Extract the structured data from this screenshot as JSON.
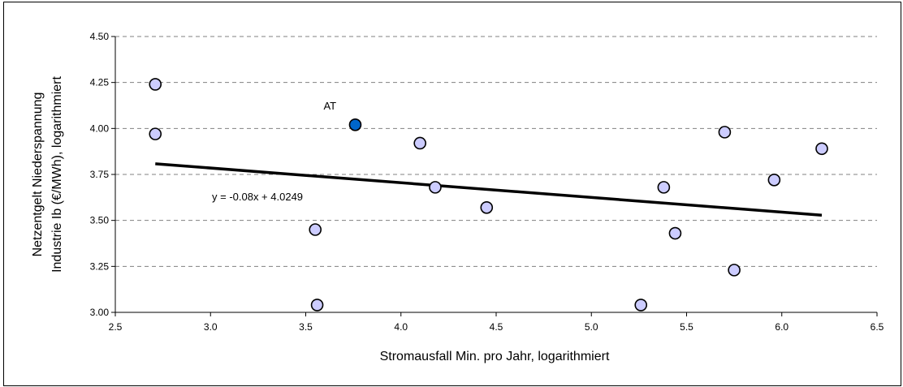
{
  "chart_data": {
    "type": "scatter",
    "xlabel": "Stromausfall Min. pro Jahr, logarithmiert",
    "ylabel_lines": [
      "Netzentgelt Niederspannung",
      "Industrie Ib (€/MWh), logarithmiert"
    ],
    "xlim": [
      2.5,
      6.5
    ],
    "ylim": [
      3.0,
      4.5
    ],
    "x_ticks": [
      "2.5",
      "3.0",
      "3.5",
      "4.0",
      "4.5",
      "5.0",
      "5.5",
      "6.0",
      "6.5"
    ],
    "y_ticks": [
      "3.00",
      "3.25",
      "3.50",
      "3.75",
      "4.00",
      "4.25",
      "4.50"
    ],
    "grid": {
      "horizontal": true,
      "style": "dashed"
    },
    "colors": {
      "point_fill": "#ccccff",
      "highlight_fill": "#0066cc",
      "point_stroke": "#000000",
      "trendline": "#000000",
      "grid": "#808080"
    },
    "points": [
      {
        "x": 2.71,
        "y": 4.24
      },
      {
        "x": 2.71,
        "y": 3.97
      },
      {
        "x": 3.55,
        "y": 3.45
      },
      {
        "x": 3.56,
        "y": 3.04
      },
      {
        "x": 3.76,
        "y": 4.02,
        "highlight": true,
        "label": "AT"
      },
      {
        "x": 4.1,
        "y": 3.92
      },
      {
        "x": 4.18,
        "y": 3.68
      },
      {
        "x": 4.45,
        "y": 3.57
      },
      {
        "x": 5.26,
        "y": 3.04
      },
      {
        "x": 5.38,
        "y": 3.68
      },
      {
        "x": 5.44,
        "y": 3.43
      },
      {
        "x": 5.7,
        "y": 3.98
      },
      {
        "x": 5.75,
        "y": 3.23
      },
      {
        "x": 5.96,
        "y": 3.72
      },
      {
        "x": 6.21,
        "y": 3.89
      }
    ],
    "trendline": {
      "equation": "y = -0.08x + 4.0249",
      "slope": -0.08,
      "intercept": 4.0249,
      "x_range": [
        2.71,
        6.21
      ]
    }
  }
}
